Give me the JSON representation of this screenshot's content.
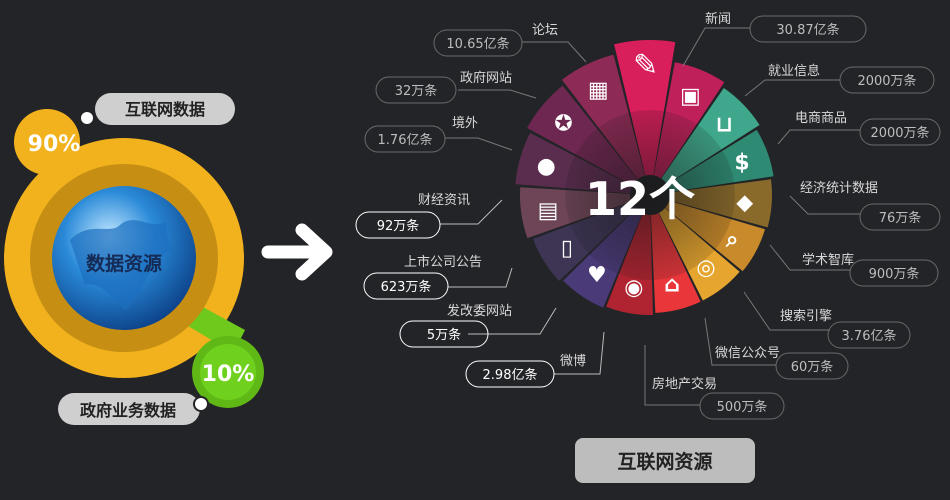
{
  "left": {
    "center_label": "数据资源",
    "internet_label": "互联网数据",
    "internet_pct": "90%",
    "gov_label": "政府业务数据",
    "gov_pct": "10%"
  },
  "right": {
    "center_count": "12个",
    "footer_label": "互联网资源"
  },
  "segments": [
    {
      "name": "新闻",
      "value": "30.87亿条",
      "icon": "news-icon",
      "color": "#d81e5b"
    },
    {
      "name": "就业信息",
      "value": "2000万条",
      "icon": "briefcase-icon",
      "color": "#c0205a"
    },
    {
      "name": "电商商品",
      "value": "2000万条",
      "icon": "shopping-bag-icon",
      "color": "#3fa88c"
    },
    {
      "name": "经济统计数据",
      "value": "76万条",
      "icon": "dollar-icon",
      "color": "#2e8a73"
    },
    {
      "name": "学术智库",
      "value": "900万条",
      "icon": "graduation-cap-icon",
      "color": "#8a6a2a"
    },
    {
      "name": "搜索引擎",
      "value": "3.76亿条",
      "icon": "search-icon",
      "color": "#c88a2a"
    },
    {
      "name": "微信公众号",
      "value": "60万条",
      "icon": "wechat-icon",
      "color": "#e6a52e"
    },
    {
      "name": "房地产交易",
      "value": "500万条",
      "icon": "house-icon",
      "color": "#e8363a"
    },
    {
      "name": "微博",
      "value": "2.98亿条",
      "icon": "weibo-icon",
      "color": "#b02431"
    },
    {
      "name": "发改委网站",
      "value": "5万条",
      "icon": "handshake-icon",
      "color": "#4a3a78"
    },
    {
      "name": "上市公司公告",
      "value": "623万条",
      "icon": "document-icon",
      "color": "#3e3555"
    },
    {
      "name": "财经资讯",
      "value": "92万条",
      "icon": "newspaper-icon",
      "color": "#6e4557"
    },
    {
      "name": "境外",
      "value": "1.76亿条",
      "icon": "globe-icon",
      "color": "#5a2c4e"
    },
    {
      "name": "政府网站",
      "value": "32万条",
      "icon": "emblem-icon",
      "color": "#6d2750"
    },
    {
      "name": "论坛",
      "value": "10.65亿条",
      "icon": "forum-icon",
      "color": "#8d2a55"
    }
  ]
}
